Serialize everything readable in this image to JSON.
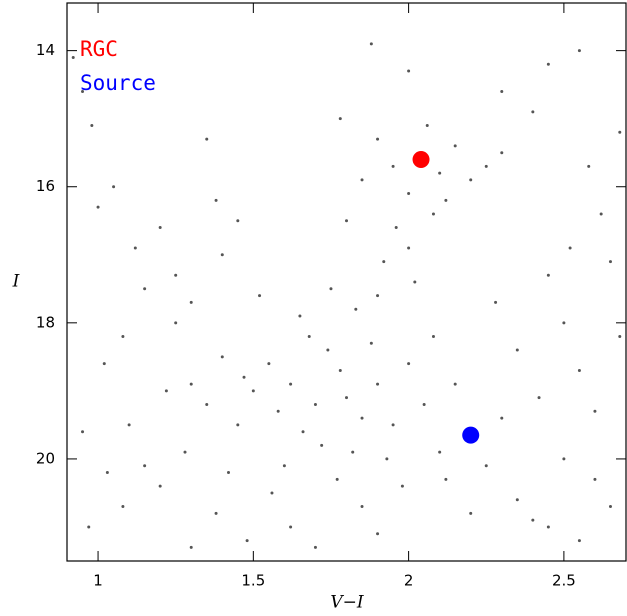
{
  "chart_data": {
    "type": "scatter",
    "xlabel": "V−I",
    "ylabel": "I",
    "xlim": [
      0.9,
      2.7
    ],
    "ylim": [
      21.5,
      13.3
    ],
    "xticks": [
      1,
      1.5,
      2,
      2.5
    ],
    "yticks": [
      14,
      16,
      18,
      20
    ],
    "series": [
      {
        "name": "RGC",
        "color": "#ff0000",
        "x": [
          2.04
        ],
        "values": [
          15.6
        ]
      },
      {
        "name": "Source",
        "color": "#0000ff",
        "x": [
          2.2
        ],
        "values": [
          19.65
        ]
      },
      {
        "color": "#555555",
        "x": [
          1.62,
          1.7,
          1.78,
          1.85,
          1.66,
          1.74,
          1.9,
          1.58,
          1.82,
          1.95,
          1.55,
          1.68,
          1.88,
          1.72,
          1.8,
          1.6,
          1.77,
          1.93,
          1.5,
          1.47,
          1.65,
          1.83,
          2.0,
          2.05,
          2.1,
          1.98,
          1.85,
          1.56,
          1.45,
          1.42,
          1.4,
          1.52,
          1.75,
          1.9,
          2.02,
          2.08,
          2.15,
          2.12,
          2.25,
          2.3,
          1.35,
          1.3,
          1.28,
          1.38,
          1.62,
          1.9,
          2.2,
          1.7,
          1.48,
          2.35,
          1.96,
          2.0,
          1.9,
          2.06,
          2.1,
          1.85,
          2.15,
          2.2,
          2.0,
          1.92,
          2.08,
          1.95,
          2.12,
          1.8,
          2.25,
          2.3,
          2.4,
          2.3,
          2.45,
          2.55,
          1.88,
          2.0,
          1.78,
          0.92,
          0.95,
          0.98,
          1.0,
          1.05,
          1.12,
          1.15,
          1.2,
          1.25,
          1.35,
          1.38,
          1.45,
          1.4,
          1.08,
          1.02,
          0.95,
          1.03,
          1.08,
          1.15,
          1.2,
          1.22,
          1.1,
          0.97,
          1.3,
          1.25,
          1.3,
          2.45,
          2.5,
          2.55,
          2.6,
          2.65,
          2.68,
          2.5,
          2.6,
          2.42,
          2.55,
          2.65,
          2.4,
          2.35,
          2.28,
          2.62,
          2.58,
          2.68,
          2.52,
          2.45
        ],
        "values": [
          18.9,
          19.2,
          18.7,
          19.4,
          19.6,
          18.4,
          18.9,
          19.3,
          19.9,
          19.5,
          18.6,
          18.2,
          18.3,
          19.8,
          19.1,
          20.1,
          20.3,
          20.0,
          19.0,
          18.8,
          17.9,
          17.8,
          18.6,
          19.2,
          19.9,
          20.4,
          20.7,
          20.5,
          19.5,
          20.2,
          18.5,
          17.6,
          17.5,
          17.6,
          17.4,
          18.2,
          18.9,
          20.3,
          20.1,
          19.4,
          19.2,
          18.9,
          19.9,
          20.8,
          21.0,
          21.1,
          20.8,
          21.3,
          21.2,
          20.6,
          16.6,
          16.1,
          15.3,
          15.1,
          15.8,
          15.9,
          15.4,
          15.9,
          16.9,
          17.1,
          16.4,
          15.7,
          16.2,
          16.5,
          15.7,
          15.5,
          14.9,
          14.6,
          14.2,
          14.0,
          13.9,
          14.3,
          15.0,
          14.1,
          14.6,
          15.1,
          16.3,
          16.0,
          16.9,
          17.5,
          16.6,
          17.3,
          15.3,
          16.2,
          16.5,
          17.0,
          18.2,
          18.6,
          19.6,
          20.2,
          20.7,
          20.1,
          20.4,
          19.0,
          19.5,
          21.0,
          21.3,
          18.0,
          17.7,
          17.3,
          18.0,
          18.7,
          19.3,
          17.1,
          18.2,
          20.0,
          20.3,
          19.1,
          21.2,
          20.7,
          20.9,
          18.4,
          17.7,
          16.4,
          15.7,
          15.2,
          16.9,
          21.0
        ]
      }
    ]
  }
}
